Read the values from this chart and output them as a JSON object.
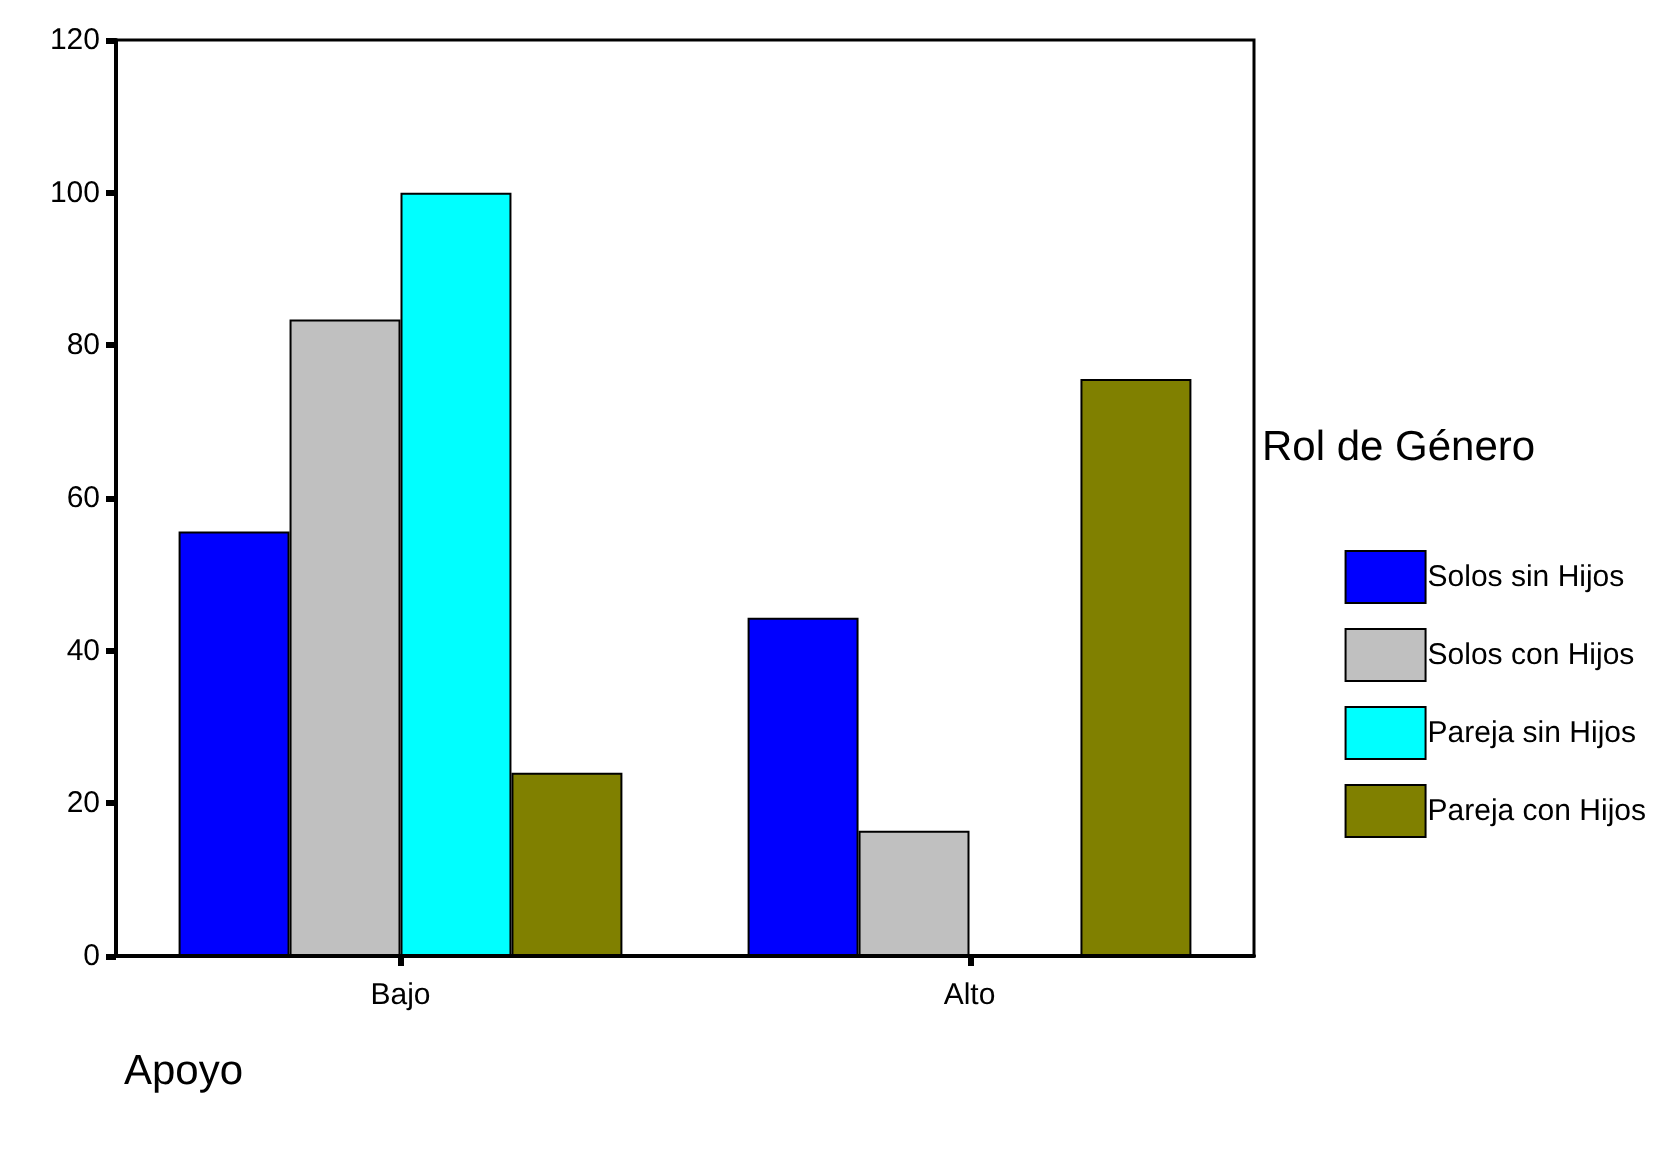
{
  "chart_data": {
    "type": "bar",
    "xlabel": "Apoyo",
    "legend_title": "Rol de Género",
    "categories": [
      "Bajo",
      "Alto"
    ],
    "series": [
      {
        "name": "Solos sin Hijos",
        "color": "#0000ff",
        "values": [
          55.6,
          44.3
        ]
      },
      {
        "name": "Solos con Hijos",
        "color": "#c0c0c0",
        "values": [
          83.4,
          16.4
        ]
      },
      {
        "name": "Pareja sin Hijos",
        "color": "#00ffff",
        "values": [
          100,
          0
        ]
      },
      {
        "name": "Pareja con Hijos",
        "color": "#808000",
        "values": [
          24,
          75.6
        ]
      }
    ],
    "ylim": [
      0,
      120
    ],
    "yticks": [
      0,
      20,
      40,
      60,
      80,
      100,
      120
    ],
    "grid": false,
    "legend": "right"
  }
}
